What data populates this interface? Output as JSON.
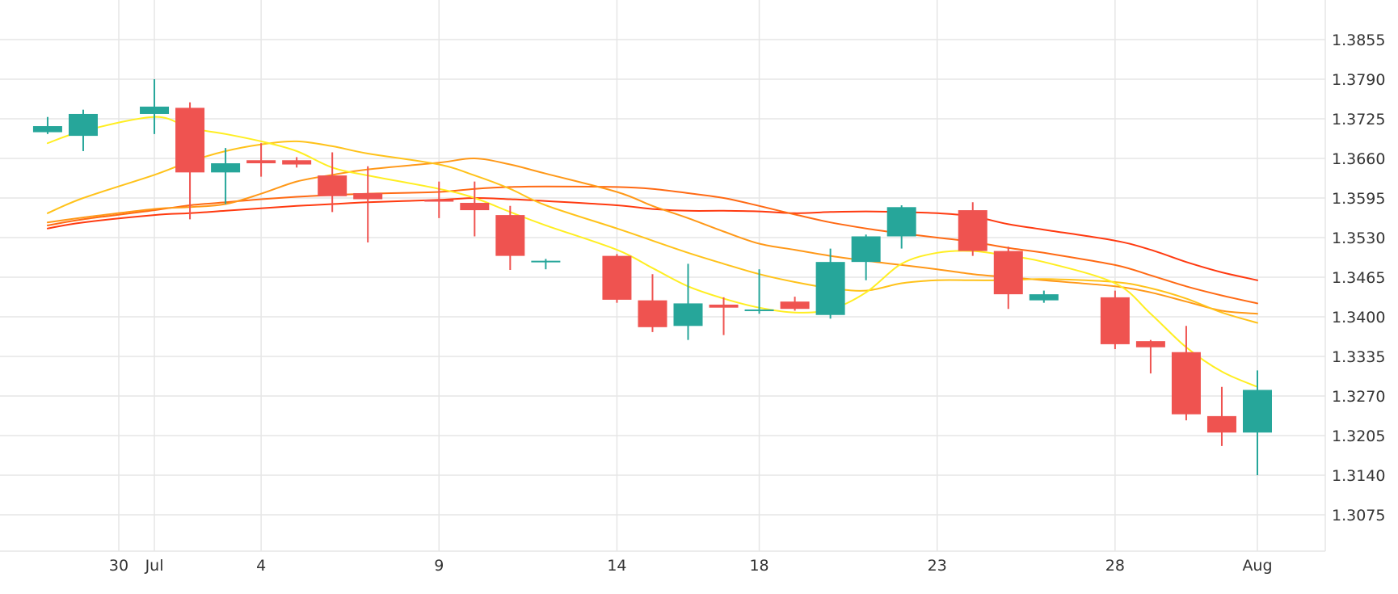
{
  "chart_data": {
    "type": "candlestick",
    "y_ticks": [
      "1.3855",
      "1.3790",
      "1.3725",
      "1.3660",
      "1.3595",
      "1.3530",
      "1.3465",
      "1.3400",
      "1.3335",
      "1.3270",
      "1.3205",
      "1.3140",
      "1.3075"
    ],
    "x_ticks": [
      {
        "date": "2018-06-30",
        "label": "30"
      },
      {
        "date": "2018-07-01",
        "label": "Jul"
      },
      {
        "date": "2018-07-04",
        "label": "4"
      },
      {
        "date": "2018-07-09",
        "label": "9"
      },
      {
        "date": "2018-07-14",
        "label": "14"
      },
      {
        "date": "2018-07-18",
        "label": "18"
      },
      {
        "date": "2018-07-23",
        "label": "23"
      },
      {
        "date": "2018-07-28",
        "label": "28"
      },
      {
        "date": "2018-08-01",
        "label": "Aug"
      }
    ],
    "ylim": [
      1.3015,
      1.3915
    ],
    "xlim": [
      "2018-06-26",
      "2018-08-03"
    ],
    "grid": true,
    "colors": {
      "up": "#26a69a",
      "down": "#ef5350",
      "grid": "#e6e6e6"
    },
    "candles": [
      {
        "date": "2018-06-28",
        "open": 1.3703,
        "high": 1.3728,
        "low": 1.37,
        "close": 1.3713
      },
      {
        "date": "2018-06-29",
        "open": 1.3697,
        "high": 1.374,
        "low": 1.3672,
        "close": 1.3733
      },
      {
        "date": "2018-07-01",
        "open": 1.3733,
        "high": 1.379,
        "low": 1.37,
        "close": 1.3745
      },
      {
        "date": "2018-07-02",
        "open": 1.3743,
        "high": 1.3752,
        "low": 1.356,
        "close": 1.3637
      },
      {
        "date": "2018-07-03",
        "open": 1.3637,
        "high": 1.3677,
        "low": 1.3585,
        "close": 1.3652
      },
      {
        "date": "2018-07-04",
        "open": 1.3657,
        "high": 1.3685,
        "low": 1.363,
        "close": 1.3652
      },
      {
        "date": "2018-07-05",
        "open": 1.3657,
        "high": 1.3662,
        "low": 1.3645,
        "close": 1.365
      },
      {
        "date": "2018-07-06",
        "open": 1.3632,
        "high": 1.367,
        "low": 1.3572,
        "close": 1.3598
      },
      {
        "date": "2018-07-07",
        "open": 1.3603,
        "high": 1.3647,
        "low": 1.3522,
        "close": 1.3593
      },
      {
        "date": "2018-07-09",
        "open": 1.3592,
        "high": 1.3622,
        "low": 1.3562,
        "close": 1.3589
      },
      {
        "date": "2018-07-10",
        "open": 1.3587,
        "high": 1.3622,
        "low": 1.3532,
        "close": 1.3575
      },
      {
        "date": "2018-07-11",
        "open": 1.3567,
        "high": 1.3582,
        "low": 1.3477,
        "close": 1.35
      },
      {
        "date": "2018-07-12",
        "open": 1.349,
        "high": 1.3495,
        "low": 1.3478,
        "close": 1.3492
      },
      {
        "date": "2018-07-14",
        "open": 1.35,
        "high": 1.3503,
        "low": 1.3423,
        "close": 1.3428
      },
      {
        "date": "2018-07-15",
        "open": 1.3427,
        "high": 1.347,
        "low": 1.3375,
        "close": 1.3383
      },
      {
        "date": "2018-07-16",
        "open": 1.3385,
        "high": 1.3487,
        "low": 1.3362,
        "close": 1.3422
      },
      {
        "date": "2018-07-17",
        "open": 1.342,
        "high": 1.3432,
        "low": 1.337,
        "close": 1.3415
      },
      {
        "date": "2018-07-18",
        "open": 1.341,
        "high": 1.3478,
        "low": 1.3405,
        "close": 1.3412
      },
      {
        "date": "2018-07-19",
        "open": 1.3425,
        "high": 1.3433,
        "low": 1.341,
        "close": 1.3413
      },
      {
        "date": "2018-07-20",
        "open": 1.3403,
        "high": 1.3512,
        "low": 1.3397,
        "close": 1.349
      },
      {
        "date": "2018-07-21",
        "open": 1.349,
        "high": 1.3535,
        "low": 1.346,
        "close": 1.3532
      },
      {
        "date": "2018-07-22",
        "open": 1.3532,
        "high": 1.3583,
        "low": 1.3512,
        "close": 1.358
      },
      {
        "date": "2018-07-24",
        "open": 1.3575,
        "high": 1.3588,
        "low": 1.35,
        "close": 1.3508
      },
      {
        "date": "2018-07-25",
        "open": 1.3508,
        "high": 1.3515,
        "low": 1.3413,
        "close": 1.3437
      },
      {
        "date": "2018-07-26",
        "open": 1.3427,
        "high": 1.3443,
        "low": 1.3423,
        "close": 1.3437
      },
      {
        "date": "2018-07-28",
        "open": 1.3432,
        "high": 1.3443,
        "low": 1.3347,
        "close": 1.3355
      },
      {
        "date": "2018-07-29",
        "open": 1.336,
        "high": 1.3362,
        "low": 1.3307,
        "close": 1.335
      },
      {
        "date": "2018-07-30",
        "open": 1.3342,
        "high": 1.3385,
        "low": 1.323,
        "close": 1.324
      },
      {
        "date": "2018-07-31",
        "open": 1.3237,
        "high": 1.3285,
        "low": 1.3188,
        "close": 1.321
      },
      {
        "date": "2018-08-01",
        "open": 1.321,
        "high": 1.3312,
        "low": 1.314,
        "close": 1.328
      }
    ],
    "moving_averages": [
      {
        "color": "#ffee22",
        "width": 2,
        "points": [
          [
            "2018-06-28",
            1.3685
          ],
          [
            "2018-06-29",
            1.3705
          ],
          [
            "2018-07-01",
            1.3728
          ],
          [
            "2018-07-02",
            1.371
          ],
          [
            "2018-07-03",
            1.37
          ],
          [
            "2018-07-04",
            1.3688
          ],
          [
            "2018-07-05",
            1.3672
          ],
          [
            "2018-07-06",
            1.3645
          ],
          [
            "2018-07-07",
            1.3632
          ],
          [
            "2018-07-09",
            1.361
          ],
          [
            "2018-07-10",
            1.3595
          ],
          [
            "2018-07-11",
            1.3572
          ],
          [
            "2018-07-12",
            1.355
          ],
          [
            "2018-07-14",
            1.351
          ],
          [
            "2018-07-15",
            1.348
          ],
          [
            "2018-07-16",
            1.345
          ],
          [
            "2018-07-17",
            1.343
          ],
          [
            "2018-07-18",
            1.3415
          ],
          [
            "2018-07-19",
            1.3407
          ],
          [
            "2018-07-20",
            1.3412
          ],
          [
            "2018-07-21",
            1.344
          ],
          [
            "2018-07-22",
            1.3487
          ],
          [
            "2018-07-23",
            1.3505
          ],
          [
            "2018-07-24",
            1.3508
          ],
          [
            "2018-07-25",
            1.35
          ],
          [
            "2018-07-26",
            1.349
          ],
          [
            "2018-07-28",
            1.3455
          ],
          [
            "2018-07-29",
            1.3405
          ],
          [
            "2018-07-30",
            1.335
          ],
          [
            "2018-07-31",
            1.331
          ],
          [
            "2018-08-01",
            1.3285
          ]
        ]
      },
      {
        "color": "#ffc21a",
        "width": 2,
        "points": [
          [
            "2018-06-28",
            1.357
          ],
          [
            "2018-06-29",
            1.3595
          ],
          [
            "2018-07-01",
            1.3633
          ],
          [
            "2018-07-02",
            1.3655
          ],
          [
            "2018-07-03",
            1.3672
          ],
          [
            "2018-07-04",
            1.3683
          ],
          [
            "2018-07-05",
            1.3688
          ],
          [
            "2018-07-06",
            1.368
          ],
          [
            "2018-07-07",
            1.3668
          ],
          [
            "2018-07-09",
            1.365
          ],
          [
            "2018-07-10",
            1.3632
          ],
          [
            "2018-07-11",
            1.361
          ],
          [
            "2018-07-12",
            1.3583
          ],
          [
            "2018-07-14",
            1.3545
          ],
          [
            "2018-07-15",
            1.3525
          ],
          [
            "2018-07-16",
            1.3505
          ],
          [
            "2018-07-17",
            1.3487
          ],
          [
            "2018-07-18",
            1.347
          ],
          [
            "2018-07-19",
            1.3457
          ],
          [
            "2018-07-20",
            1.3447
          ],
          [
            "2018-07-21",
            1.3443
          ],
          [
            "2018-07-22",
            1.3455
          ],
          [
            "2018-07-23",
            1.346
          ],
          [
            "2018-07-24",
            1.346
          ],
          [
            "2018-07-25",
            1.346
          ],
          [
            "2018-07-26",
            1.3462
          ],
          [
            "2018-07-28",
            1.3457
          ],
          [
            "2018-07-29",
            1.3447
          ],
          [
            "2018-07-30",
            1.343
          ],
          [
            "2018-07-31",
            1.3407
          ],
          [
            "2018-08-01",
            1.339
          ]
        ]
      },
      {
        "color": "#ff9818",
        "width": 2,
        "points": [
          [
            "2018-06-28",
            1.3555
          ],
          [
            "2018-06-29",
            1.3563
          ],
          [
            "2018-07-01",
            1.3577
          ],
          [
            "2018-07-02",
            1.358
          ],
          [
            "2018-07-03",
            1.3585
          ],
          [
            "2018-07-04",
            1.3602
          ],
          [
            "2018-07-05",
            1.3622
          ],
          [
            "2018-07-06",
            1.3633
          ],
          [
            "2018-07-07",
            1.3642
          ],
          [
            "2018-07-09",
            1.3653
          ],
          [
            "2018-07-10",
            1.366
          ],
          [
            "2018-07-11",
            1.365
          ],
          [
            "2018-07-12",
            1.3635
          ],
          [
            "2018-07-14",
            1.3605
          ],
          [
            "2018-07-15",
            1.3582
          ],
          [
            "2018-07-16",
            1.3562
          ],
          [
            "2018-07-17",
            1.354
          ],
          [
            "2018-07-18",
            1.352
          ],
          [
            "2018-07-19",
            1.351
          ],
          [
            "2018-07-20",
            1.35
          ],
          [
            "2018-07-21",
            1.3492
          ],
          [
            "2018-07-22",
            1.3485
          ],
          [
            "2018-07-23",
            1.3478
          ],
          [
            "2018-07-24",
            1.347
          ],
          [
            "2018-07-25",
            1.3465
          ],
          [
            "2018-07-26",
            1.346
          ],
          [
            "2018-07-28",
            1.345
          ],
          [
            "2018-07-29",
            1.344
          ],
          [
            "2018-07-30",
            1.3425
          ],
          [
            "2018-07-31",
            1.341
          ],
          [
            "2018-08-01",
            1.3405
          ]
        ]
      },
      {
        "color": "#ff6a14",
        "width": 2,
        "points": [
          [
            "2018-06-28",
            1.355
          ],
          [
            "2018-06-29",
            1.356
          ],
          [
            "2018-07-01",
            1.3575
          ],
          [
            "2018-07-02",
            1.3583
          ],
          [
            "2018-07-03",
            1.3588
          ],
          [
            "2018-07-04",
            1.3593
          ],
          [
            "2018-07-05",
            1.3597
          ],
          [
            "2018-07-06",
            1.36
          ],
          [
            "2018-07-07",
            1.3602
          ],
          [
            "2018-07-09",
            1.3605
          ],
          [
            "2018-07-10",
            1.361
          ],
          [
            "2018-07-11",
            1.3613
          ],
          [
            "2018-07-12",
            1.3614
          ],
          [
            "2018-07-14",
            1.3613
          ],
          [
            "2018-07-15",
            1.361
          ],
          [
            "2018-07-16",
            1.3603
          ],
          [
            "2018-07-17",
            1.3595
          ],
          [
            "2018-07-18",
            1.3582
          ],
          [
            "2018-07-19",
            1.3568
          ],
          [
            "2018-07-20",
            1.3555
          ],
          [
            "2018-07-21",
            1.3545
          ],
          [
            "2018-07-22",
            1.3537
          ],
          [
            "2018-07-23",
            1.353
          ],
          [
            "2018-07-24",
            1.3523
          ],
          [
            "2018-07-25",
            1.3513
          ],
          [
            "2018-07-26",
            1.3505
          ],
          [
            "2018-07-28",
            1.3485
          ],
          [
            "2018-07-29",
            1.3468
          ],
          [
            "2018-07-30",
            1.345
          ],
          [
            "2018-07-31",
            1.3435
          ],
          [
            "2018-08-01",
            1.3422
          ]
        ]
      },
      {
        "color": "#ff3a10",
        "width": 2,
        "points": [
          [
            "2018-06-28",
            1.3545
          ],
          [
            "2018-06-29",
            1.3555
          ],
          [
            "2018-07-01",
            1.3567
          ],
          [
            "2018-07-02",
            1.357
          ],
          [
            "2018-07-03",
            1.3574
          ],
          [
            "2018-07-04",
            1.3578
          ],
          [
            "2018-07-05",
            1.3582
          ],
          [
            "2018-07-06",
            1.3585
          ],
          [
            "2018-07-07",
            1.3588
          ],
          [
            "2018-07-09",
            1.3592
          ],
          [
            "2018-07-10",
            1.3595
          ],
          [
            "2018-07-11",
            1.3593
          ],
          [
            "2018-07-12",
            1.359
          ],
          [
            "2018-07-14",
            1.3583
          ],
          [
            "2018-07-15",
            1.3577
          ],
          [
            "2018-07-16",
            1.3574
          ],
          [
            "2018-07-17",
            1.3574
          ],
          [
            "2018-07-18",
            1.3573
          ],
          [
            "2018-07-19",
            1.357
          ],
          [
            "2018-07-20",
            1.3572
          ],
          [
            "2018-07-21",
            1.3573
          ],
          [
            "2018-07-22",
            1.3572
          ],
          [
            "2018-07-23",
            1.357
          ],
          [
            "2018-07-24",
            1.3565
          ],
          [
            "2018-07-25",
            1.3552
          ],
          [
            "2018-07-26",
            1.3543
          ],
          [
            "2018-07-28",
            1.3525
          ],
          [
            "2018-07-29",
            1.351
          ],
          [
            "2018-07-30",
            1.349
          ],
          [
            "2018-07-31",
            1.3473
          ],
          [
            "2018-08-01",
            1.346
          ]
        ]
      }
    ]
  }
}
